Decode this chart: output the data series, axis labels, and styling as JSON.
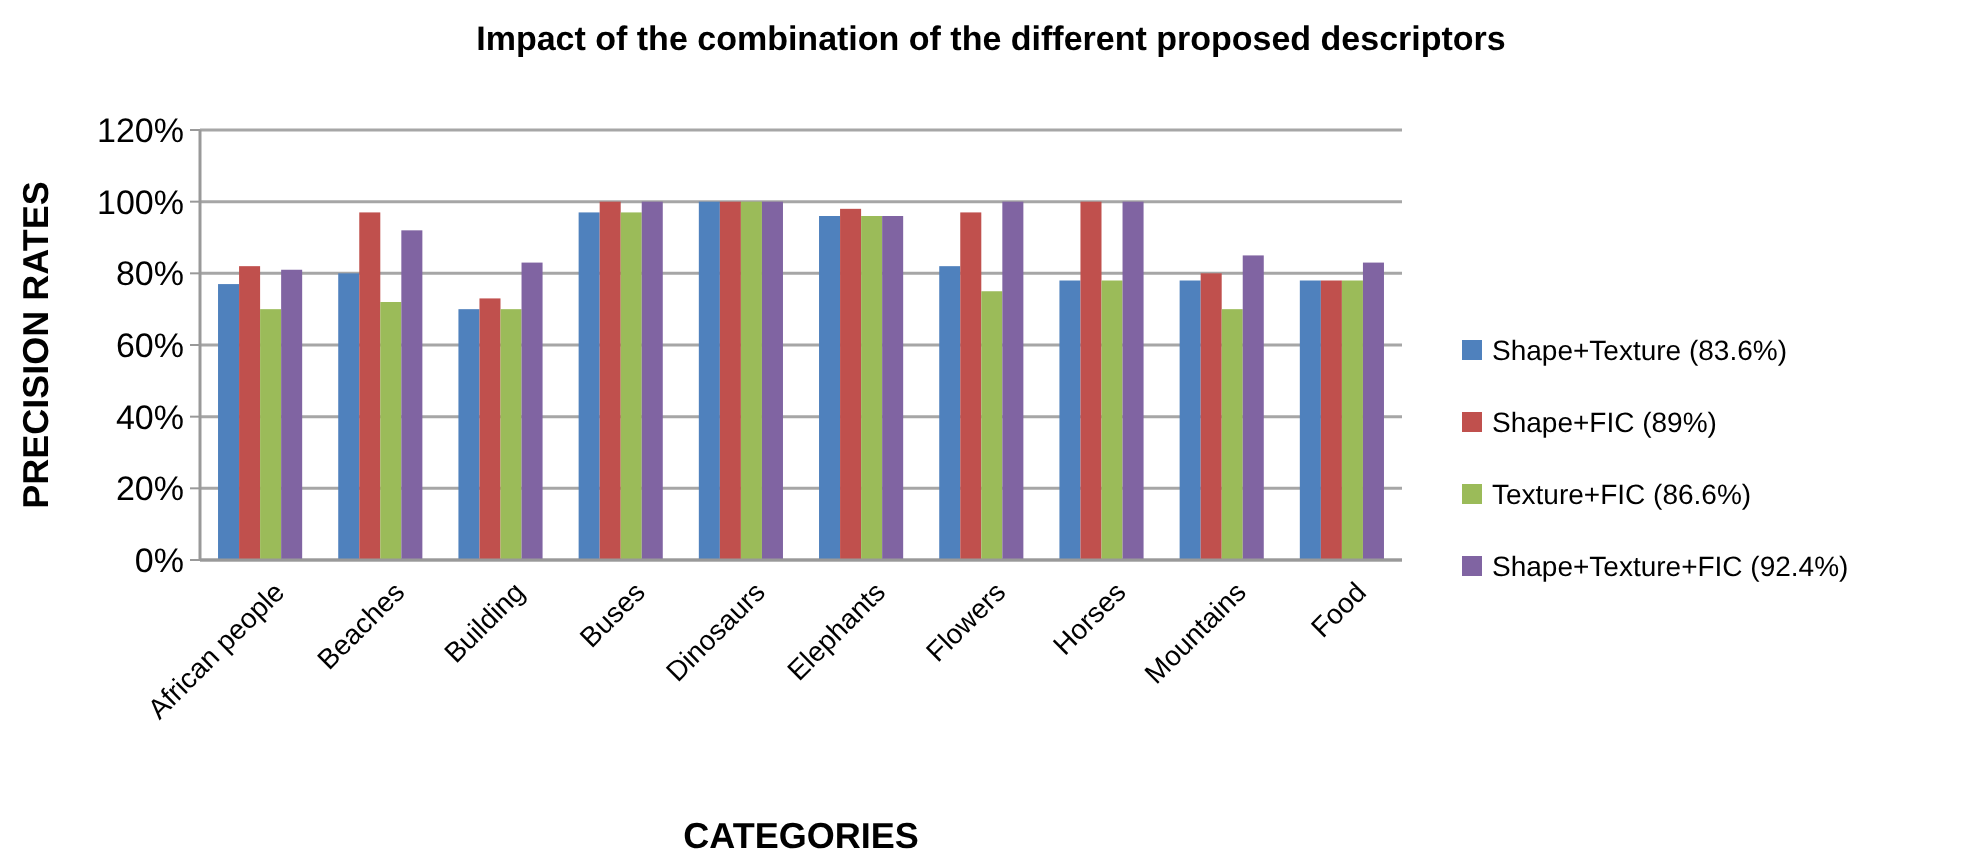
{
  "chart_data": {
    "type": "bar",
    "title": "Impact of the combination of the different  proposed descriptors",
    "xlabel": "CATEGORIES",
    "ylabel": "PRECISION  RATES",
    "categories": [
      "African people",
      "Beaches",
      "Building",
      "Buses",
      "Dinosaurs",
      "Elephants",
      "Flowers",
      "Horses",
      "Mountains",
      "Food"
    ],
    "series": [
      {
        "name": "Shape+Texture (83.6%)",
        "color": "#4f81bd",
        "values": [
          77,
          80,
          70,
          97,
          100,
          96,
          82,
          78,
          78,
          78
        ]
      },
      {
        "name": "Shape+FIC (89%)",
        "color": "#c0504d",
        "values": [
          82,
          97,
          73,
          100,
          100,
          98,
          97,
          100,
          80,
          78
        ]
      },
      {
        "name": "Texture+FIC (86.6%)",
        "color": "#9bbb59",
        "values": [
          70,
          72,
          70,
          97,
          100,
          96,
          75,
          78,
          70,
          78
        ]
      },
      {
        "name": "Shape+Texture+FIC (92.4%)",
        "color": "#8064a2",
        "values": [
          81,
          92,
          83,
          100,
          100,
          96,
          100,
          100,
          85,
          83
        ]
      }
    ],
    "ylim": [
      0,
      120
    ],
    "yticks": [
      {
        "value": 0,
        "label": "0%"
      },
      {
        "value": 20,
        "label": "20%"
      },
      {
        "value": 40,
        "label": "40%"
      },
      {
        "value": 60,
        "label": "60%"
      },
      {
        "value": 80,
        "label": "80%"
      },
      {
        "value": 100,
        "label": "100%"
      },
      {
        "value": 120,
        "label": "120%"
      }
    ],
    "grid": "y",
    "legend": "right"
  }
}
